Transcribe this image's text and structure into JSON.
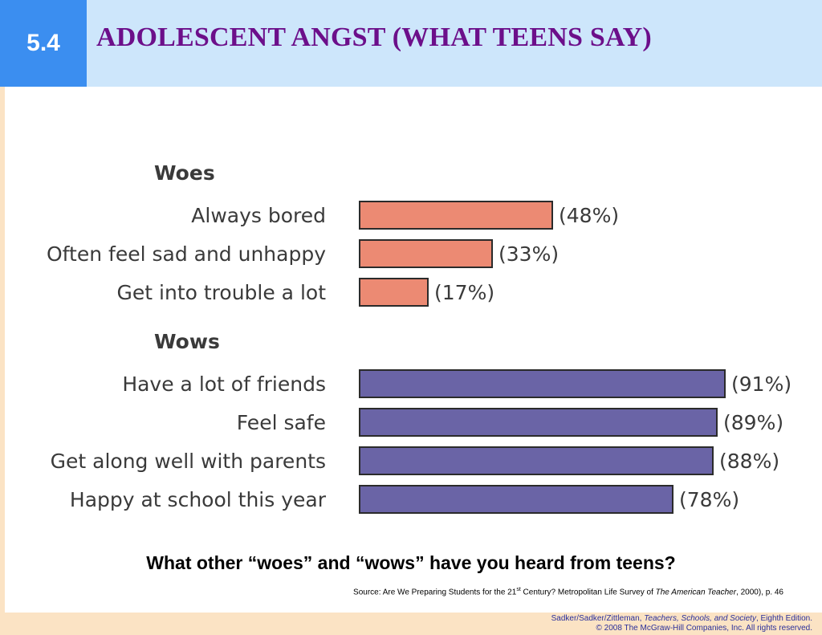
{
  "slide": {
    "number": "5.4",
    "title": "ADOLESCENT ANGST (WHAT TEENS SAY)"
  },
  "colors": {
    "number_box": "#3b8ef0",
    "title_band": "#cde6fb",
    "title_text": "#6c0f8a",
    "woes_bar": "#ec8a73",
    "wows_bar": "#6a64a6",
    "bar_outline": "#2b2b2b",
    "footer_band": "#fbe3c4"
  },
  "chart_data": {
    "type": "bar",
    "orientation": "horizontal",
    "groups": [
      {
        "name": "Woes",
        "color": "#ec8a73",
        "categories": [
          "Always bored",
          "Often feel sad and unhappy",
          "Get into trouble a lot"
        ],
        "values": [
          48,
          33,
          17
        ],
        "labels": [
          "(48%)",
          "(33%)",
          "(17%)"
        ]
      },
      {
        "name": "Wows",
        "color": "#6a64a6",
        "categories": [
          "Have a lot of friends",
          "Feel safe",
          "Get along well with parents",
          "Happy at school this year"
        ],
        "values": [
          91,
          89,
          88,
          78
        ],
        "labels": [
          "(91%)",
          "(89%)",
          "(88%)",
          "(78%)"
        ]
      }
    ],
    "unit": "%",
    "xlim": [
      0,
      100
    ],
    "grid": false,
    "legend": "none"
  },
  "question": "What other “woes” and “wows” have you heard from teens?",
  "source": {
    "prefix": "Source: Are We Preparing Students for the 21",
    "sup": "st",
    "middle": " Century? Metropolitan Life Survey of ",
    "italic": "The American Teacher",
    "suffix": ", 2000), p. 46"
  },
  "footer": {
    "authors": "Sadker/Sadker/Zittleman, ",
    "book": "Teachers, Schools, and Society",
    "edition": ", Eighth Edition.",
    "copyright": "© 2008 The McGraw-Hill Companies, Inc. All rights reserved."
  }
}
